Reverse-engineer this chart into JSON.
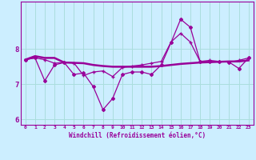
{
  "xlabel": "Windchill (Refroidissement éolien,°C)",
  "background_color": "#cceeff",
  "line_color": "#990099",
  "grid_color": "#aadddd",
  "x_values": [
    0,
    1,
    2,
    3,
    4,
    5,
    6,
    7,
    8,
    9,
    10,
    11,
    12,
    13,
    14,
    15,
    16,
    17,
    18,
    19,
    20,
    21,
    22,
    23
  ],
  "y_line1": [
    7.7,
    7.8,
    7.75,
    7.75,
    7.62,
    7.61,
    7.6,
    7.55,
    7.52,
    7.5,
    7.5,
    7.5,
    7.5,
    7.5,
    7.52,
    7.55,
    7.58,
    7.6,
    7.62,
    7.63,
    7.64,
    7.65,
    7.65,
    7.68
  ],
  "y_line2": [
    7.7,
    7.75,
    7.1,
    7.55,
    7.62,
    7.28,
    7.32,
    6.93,
    6.28,
    6.6,
    7.28,
    7.35,
    7.35,
    7.28,
    7.55,
    8.18,
    8.85,
    8.62,
    7.65,
    7.65,
    7.65,
    7.63,
    7.45,
    7.75
  ],
  "y_line3": [
    7.7,
    7.75,
    7.7,
    7.6,
    7.62,
    7.61,
    7.25,
    7.35,
    7.38,
    7.22,
    7.48,
    7.52,
    7.55,
    7.6,
    7.65,
    8.2,
    8.45,
    8.2,
    7.65,
    7.68,
    7.65,
    7.63,
    7.68,
    7.75
  ],
  "ylim": [
    5.85,
    9.35
  ],
  "yticks": [
    6,
    7,
    8
  ],
  "xlim": [
    -0.5,
    23.5
  ]
}
